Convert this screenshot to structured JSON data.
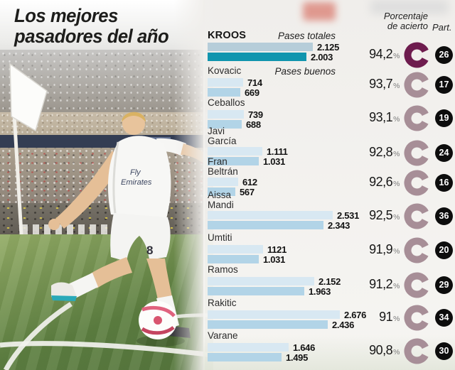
{
  "title": {
    "line1": "Los mejores",
    "line2": "pasadores del año"
  },
  "photo": {
    "subject": "Toni Kroos taking a corner kick",
    "jersey_line1": "Fly",
    "jersey_line2": "Emirates",
    "shorts_number": "8"
  },
  "chart_data": {
    "type": "bar",
    "title": "Los mejores pasadores del año",
    "orientation": "horizontal",
    "series_labels": {
      "total": "Pases totales",
      "good": "Pases buenos"
    },
    "columns": {
      "accuracy_line1": "Porcentaje",
      "accuracy_line2": "de acierto",
      "part": "Part."
    },
    "x_max": 2676,
    "colors": {
      "kroos_total_bar": "#b6cdd9",
      "kroos_good_bar": "#1195ae",
      "total_bar": "#d8e8f2",
      "good_bar": "#b2d4e7",
      "ring_highlight": "#6e1c4e",
      "ring": "#a78e97",
      "badge": "#0d0d0d"
    },
    "players": [
      {
        "name": "KROOS",
        "name_lines": [
          "KROOS"
        ],
        "passes_total": 2125,
        "passes_good": 2003,
        "total_label": "2.125",
        "good_label": "2.003",
        "accuracy_pct": 94.2,
        "accuracy_label": "94,2",
        "participations": "26",
        "highlight": true
      },
      {
        "name": "Kovacic",
        "name_lines": [
          "Kovacic"
        ],
        "passes_total": 714,
        "passes_good": 669,
        "total_label": "714",
        "good_label": "669",
        "accuracy_pct": 93.7,
        "accuracy_label": "93,7",
        "participations": "17",
        "highlight": false
      },
      {
        "name": "Ceballos",
        "name_lines": [
          "Ceballos"
        ],
        "passes_total": 739,
        "passes_good": 688,
        "total_label": "739",
        "good_label": "688",
        "accuracy_pct": 93.1,
        "accuracy_label": "93,1",
        "participations": "19",
        "highlight": false
      },
      {
        "name": "Javi García",
        "name_lines": [
          "Javi",
          "García"
        ],
        "passes_total": 1111,
        "passes_good": 1031,
        "total_label": "1.111",
        "good_label": "1.031",
        "accuracy_pct": 92.8,
        "accuracy_label": "92,8",
        "participations": "24",
        "highlight": false
      },
      {
        "name": "Fran Beltrán",
        "name_lines": [
          "Fran",
          "Beltrán"
        ],
        "passes_total": 612,
        "passes_good": 567,
        "total_label": "612",
        "good_label": "567",
        "accuracy_pct": 92.6,
        "accuracy_label": "92,6",
        "participations": "16",
        "highlight": false
      },
      {
        "name": "Aissa Mandi",
        "name_lines": [
          "Aissa",
          "Mandi"
        ],
        "passes_total": 2531,
        "passes_good": 2343,
        "total_label": "2.531",
        "good_label": "2.343",
        "accuracy_pct": 92.5,
        "accuracy_label": "92,5",
        "participations": "36",
        "highlight": false
      },
      {
        "name": "Umtiti",
        "name_lines": [
          "Umtiti"
        ],
        "passes_total": 1121,
        "passes_good": 1031,
        "total_label": "1121",
        "good_label": "1.031",
        "accuracy_pct": 91.9,
        "accuracy_label": "91,9",
        "participations": "20",
        "highlight": false
      },
      {
        "name": "Ramos",
        "name_lines": [
          "Ramos"
        ],
        "passes_total": 2152,
        "passes_good": 1963,
        "total_label": "2.152",
        "good_label": "1.963",
        "accuracy_pct": 91.2,
        "accuracy_label": "91,2",
        "participations": "29",
        "highlight": false
      },
      {
        "name": "Rakitic",
        "name_lines": [
          "Rakitic"
        ],
        "passes_total": 2676,
        "passes_good": 2436,
        "total_label": "2.676",
        "good_label": "2.436",
        "accuracy_pct": 91.0,
        "accuracy_label": "91",
        "participations": "34",
        "highlight": false
      },
      {
        "name": "Varane",
        "name_lines": [
          "Varane"
        ],
        "passes_total": 1646,
        "passes_good": 1495,
        "total_label": "1.646",
        "good_label": "1.495",
        "accuracy_pct": 90.8,
        "accuracy_label": "90,8",
        "participations": "30",
        "highlight": false
      }
    ]
  }
}
